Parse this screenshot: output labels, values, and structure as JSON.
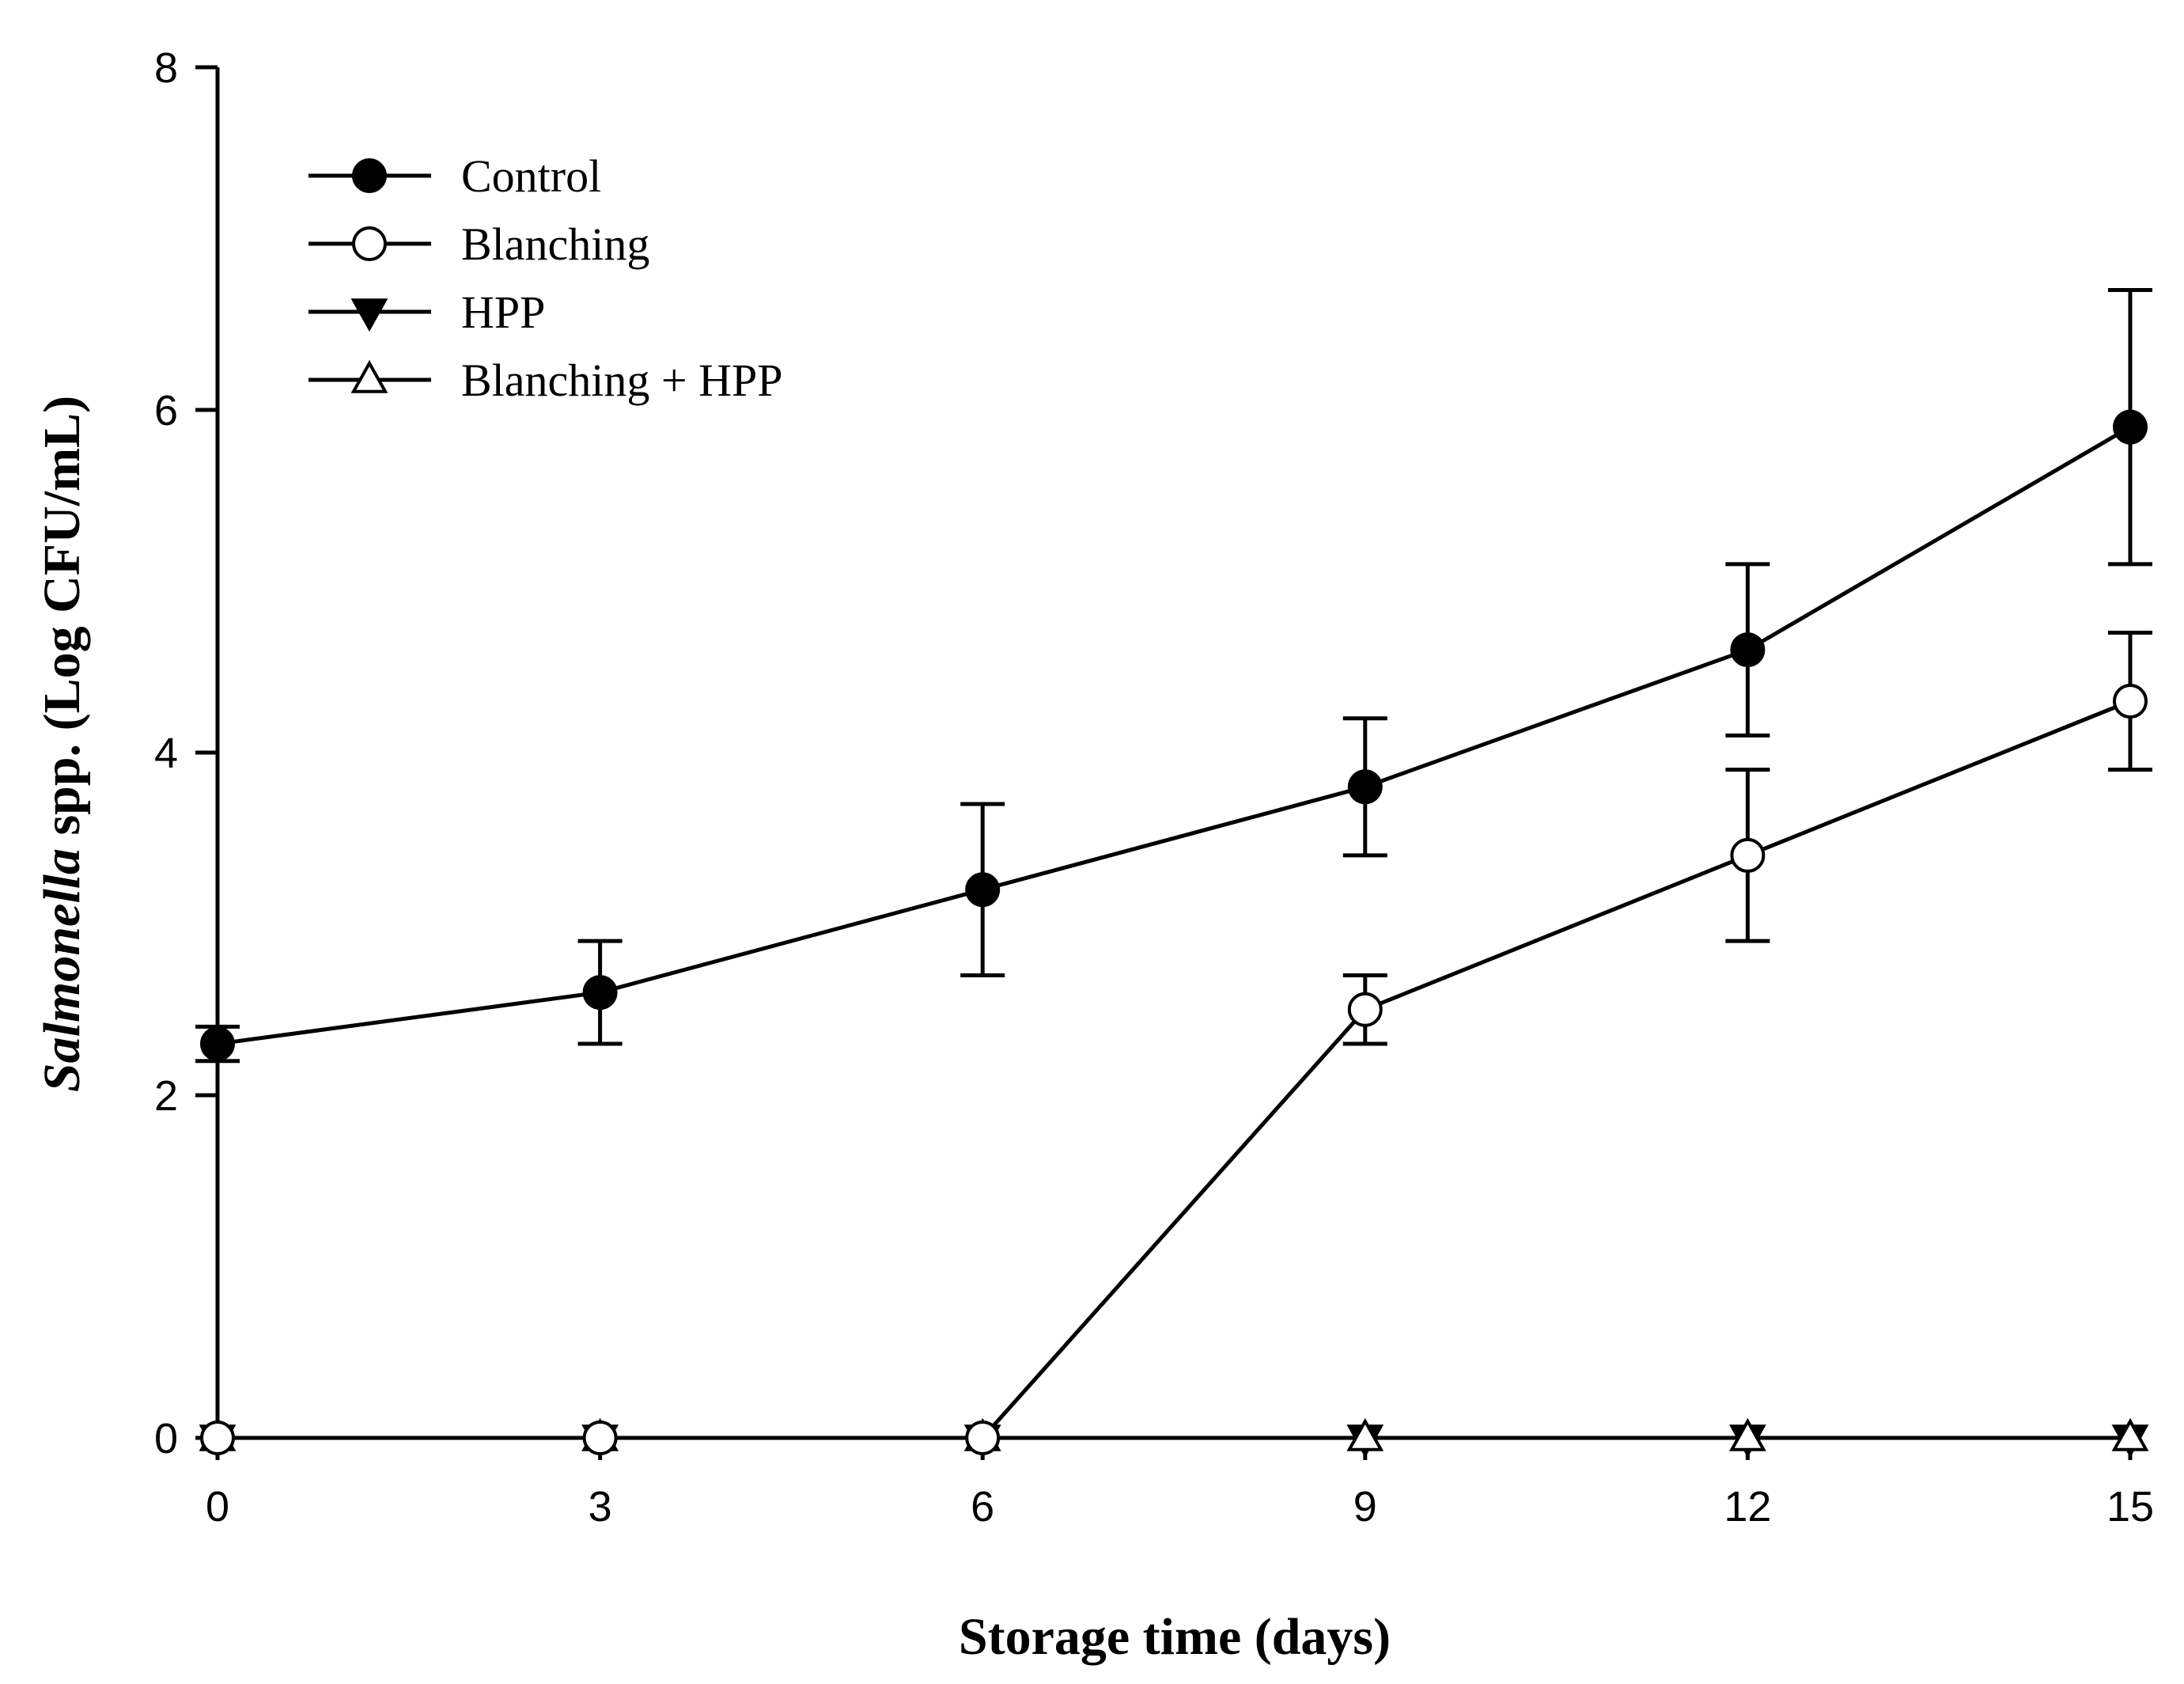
{
  "chart_data": {
    "type": "line",
    "title": "",
    "xlabel": "Storage time (days)",
    "ylabel_italic": "Salmonella",
    "ylabel_rest": " spp. (Log CFU/mL)",
    "x": [
      0,
      3,
      6,
      9,
      12,
      15
    ],
    "xlim": [
      0,
      15
    ],
    "ylim": [
      0,
      8
    ],
    "xticks": [
      "0",
      "3",
      "6",
      "9",
      "12",
      "15"
    ],
    "yticks": [
      "0",
      "2",
      "4",
      "6",
      "8"
    ],
    "grid": false,
    "legend_position": "top-left",
    "series": [
      {
        "name": "Control",
        "marker": "filled-circle",
        "values": [
          2.3,
          2.6,
          3.2,
          3.8,
          4.6,
          5.9
        ],
        "errors": [
          0.1,
          0.3,
          0.5,
          0.4,
          0.5,
          0.8
        ]
      },
      {
        "name": "Blanching",
        "marker": "open-circle",
        "values": [
          0,
          0,
          0,
          2.5,
          3.4,
          4.3
        ],
        "errors": [
          0,
          0,
          0,
          0.2,
          0.5,
          0.4
        ]
      },
      {
        "name": "HPP",
        "marker": "filled-triangle-down",
        "values": [
          0,
          0,
          0,
          0,
          0,
          0
        ],
        "errors": [
          0,
          0,
          0,
          0,
          0,
          0
        ]
      },
      {
        "name": "Blanching + HPP",
        "marker": "open-triangle-up",
        "values": [
          0,
          0,
          0,
          0,
          0,
          0
        ],
        "errors": [
          0,
          0,
          0,
          0,
          0,
          0
        ]
      }
    ]
  }
}
